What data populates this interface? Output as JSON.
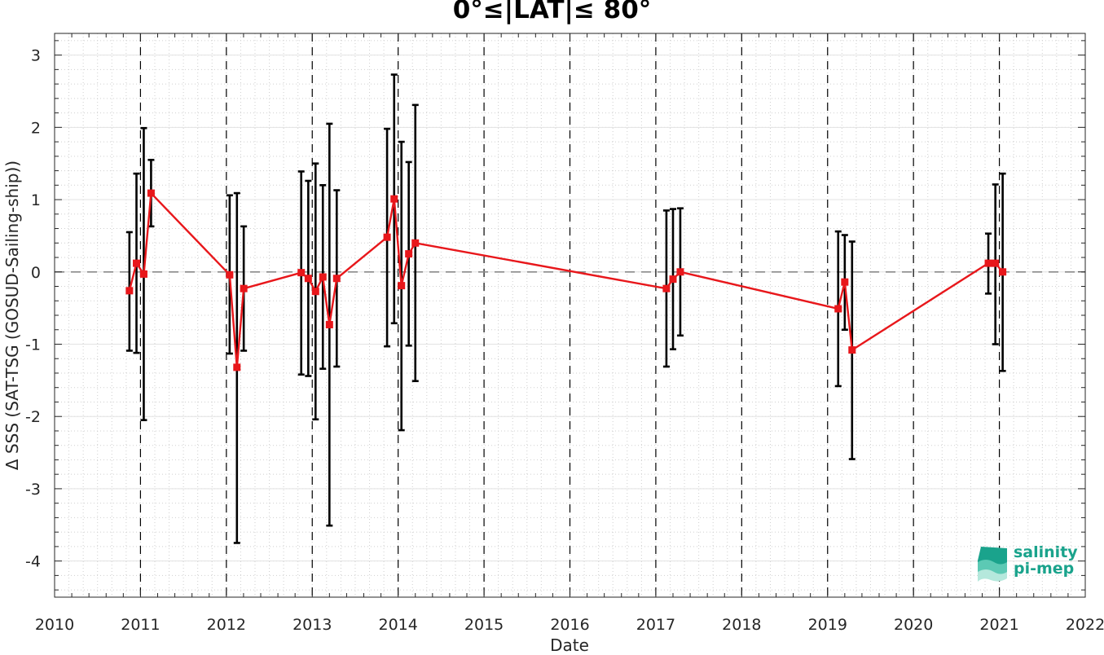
{
  "chart_data": {
    "type": "scatter",
    "title": "0°≤|LAT|≤ 80°",
    "xlabel": "Date",
    "ylabel": "Δ SSS (SAT-TSG (GOSUD-Sailing-ship))",
    "xlim": [
      "2010-01-01",
      "2022-01-01"
    ],
    "ylim": [
      -4.5,
      3.3
    ],
    "xticks": [
      "2010",
      "2011",
      "2012",
      "2013",
      "2014",
      "2015",
      "2016",
      "2017",
      "2018",
      "2019",
      "2020",
      "2021",
      "2022"
    ],
    "yticks": [
      "-4",
      "-3",
      "-2",
      "-1",
      "0",
      "1",
      "2",
      "3"
    ],
    "grid": true,
    "zero_line": 0,
    "year_lines": [
      "2011",
      "2012",
      "2013",
      "2014",
      "2015",
      "2016",
      "2017",
      "2018",
      "2019",
      "2020",
      "2021"
    ],
    "series": [
      {
        "color": "#e8171b",
        "error_color": "#000000",
        "points": [
          {
            "x": "2010-11-15",
            "y": -0.26,
            "lo": -1.09,
            "hi": 0.55
          },
          {
            "x": "2010-12-15",
            "y": 0.12,
            "lo": -1.12,
            "hi": 1.36
          },
          {
            "x": "2011-01-15",
            "y": -0.03,
            "lo": -2.05,
            "hi": 1.99
          },
          {
            "x": "2011-02-15",
            "y": 1.09,
            "lo": 0.63,
            "hi": 1.55
          },
          {
            "x": "2012-01-15",
            "y": -0.04,
            "lo": -1.13,
            "hi": 1.06
          },
          {
            "x": "2012-02-15",
            "y": -1.32,
            "lo": -3.75,
            "hi": 1.09
          },
          {
            "x": "2012-03-15",
            "y": -0.23,
            "lo": -1.09,
            "hi": 0.63
          },
          {
            "x": "2012-11-15",
            "y": -0.01,
            "lo": -1.42,
            "hi": 1.39
          },
          {
            "x": "2012-12-15",
            "y": -0.09,
            "lo": -1.44,
            "hi": 1.26
          },
          {
            "x": "2013-01-15",
            "y": -0.27,
            "lo": -2.04,
            "hi": 1.5
          },
          {
            "x": "2013-02-15",
            "y": -0.07,
            "lo": -1.34,
            "hi": 1.2
          },
          {
            "x": "2013-03-15",
            "y": -0.73,
            "lo": -3.51,
            "hi": 2.05
          },
          {
            "x": "2013-04-15",
            "y": -0.09,
            "lo": -1.31,
            "hi": 1.13
          },
          {
            "x": "2013-11-15",
            "y": 0.48,
            "lo": -1.03,
            "hi": 1.98
          },
          {
            "x": "2013-12-15",
            "y": 1.01,
            "lo": -0.71,
            "hi": 2.73
          },
          {
            "x": "2014-01-15",
            "y": -0.19,
            "lo": -2.19,
            "hi": 1.8
          },
          {
            "x": "2014-02-15",
            "y": 0.25,
            "lo": -1.02,
            "hi": 1.52
          },
          {
            "x": "2014-03-15",
            "y": 0.4,
            "lo": -1.51,
            "hi": 2.31
          },
          {
            "x": "2017-02-15",
            "y": -0.23,
            "lo": -1.31,
            "hi": 0.85
          },
          {
            "x": "2017-03-15",
            "y": -0.1,
            "lo": -1.07,
            "hi": 0.87
          },
          {
            "x": "2017-04-15",
            "y": 0.0,
            "lo": -0.88,
            "hi": 0.88
          },
          {
            "x": "2019-02-15",
            "y": -0.51,
            "lo": -1.58,
            "hi": 0.56
          },
          {
            "x": "2019-03-15",
            "y": -0.14,
            "lo": -0.8,
            "hi": 0.51
          },
          {
            "x": "2019-04-15",
            "y": -1.08,
            "lo": -2.59,
            "hi": 0.42
          },
          {
            "x": "2020-11-15",
            "y": 0.12,
            "lo": -0.3,
            "hi": 0.53
          },
          {
            "x": "2020-12-15",
            "y": 0.12,
            "lo": -1.0,
            "hi": 1.21
          },
          {
            "x": "2021-01-15",
            "y": 0.0,
            "lo": -1.37,
            "hi": 1.36
          }
        ]
      }
    ]
  },
  "logo": {
    "line1": "salinity",
    "line2": "pi-mep",
    "color": "#1aa38c"
  }
}
